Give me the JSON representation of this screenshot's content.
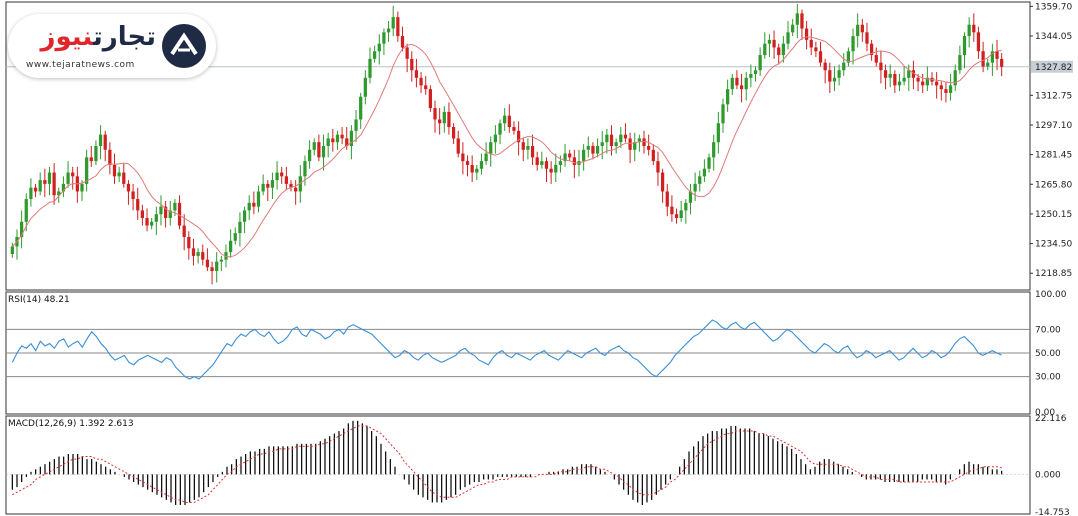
{
  "brand": {
    "name_main": "تجارت",
    "name_accent": "نیوز",
    "url": "www.tejaratnews.com",
    "colors": {
      "navy": "#1f2a44",
      "red": "#e0262b"
    },
    "mark_icon": "tejarat-logo-icon"
  },
  "colors": {
    "bull": "#2e9a2e",
    "bear": "#d02020",
    "ma": "#e07a7a",
    "rsi": "#3a8fd6",
    "macd_hist": "#000000",
    "macd_signal": "#e03030",
    "grid": "#888888",
    "panel_border": "#333333",
    "price_line": "#b8c0c8"
  },
  "chart_data": [
    {
      "type": "candlestick",
      "ylim": [
        1210,
        1362
      ],
      "yticks": [
        "1359.70",
        "1344.05",
        "1312.75",
        "1297.10",
        "1281.45",
        "1265.80",
        "1250.15",
        "1234.50",
        "1218.85"
      ],
      "current_price_label": "1327.82",
      "current_price": 1327.82,
      "moving_average": true,
      "close": [
        1233,
        1238,
        1246,
        1258,
        1264,
        1262,
        1268,
        1266,
        1272,
        1260,
        1262,
        1266,
        1272,
        1270,
        1262,
        1266,
        1280,
        1278,
        1286,
        1292,
        1284,
        1276,
        1270,
        1272,
        1266,
        1262,
        1258,
        1252,
        1248,
        1244,
        1246,
        1250,
        1254,
        1248,
        1252,
        1256,
        1244,
        1238,
        1232,
        1228,
        1230,
        1226,
        1222,
        1220,
        1225,
        1226,
        1230,
        1236,
        1240,
        1246,
        1252,
        1256,
        1254,
        1262,
        1266,
        1264,
        1268,
        1272,
        1270,
        1266,
        1264,
        1262,
        1270,
        1278,
        1284,
        1288,
        1280,
        1286,
        1290,
        1288,
        1292,
        1290,
        1286,
        1294,
        1300,
        1312,
        1322,
        1332,
        1336,
        1340,
        1346,
        1348,
        1354,
        1344,
        1338,
        1332,
        1326,
        1322,
        1318,
        1316,
        1306,
        1300,
        1298,
        1304,
        1296,
        1290,
        1282,
        1278,
        1276,
        1272,
        1274,
        1278,
        1282,
        1288,
        1292,
        1298,
        1302,
        1296,
        1294,
        1288,
        1284,
        1286,
        1280,
        1276,
        1278,
        1274,
        1272,
        1276,
        1278,
        1282,
        1280,
        1276,
        1278,
        1284,
        1286,
        1282,
        1286,
        1288,
        1292,
        1286,
        1288,
        1292,
        1290,
        1284,
        1288,
        1290,
        1286,
        1284,
        1278,
        1272,
        1262,
        1254,
        1250,
        1248,
        1252,
        1256,
        1262,
        1266,
        1270,
        1274,
        1280,
        1288,
        1298,
        1308,
        1316,
        1322,
        1318,
        1316,
        1322,
        1324,
        1326,
        1334,
        1340,
        1342,
        1338,
        1334,
        1340,
        1346,
        1350,
        1356,
        1348,
        1342,
        1338,
        1336,
        1330,
        1326,
        1320,
        1322,
        1326,
        1330,
        1336,
        1344,
        1350,
        1346,
        1340,
        1334,
        1330,
        1326,
        1322,
        1324,
        1318,
        1320,
        1322,
        1326,
        1322,
        1320,
        1318,
        1322,
        1320,
        1318,
        1316,
        1314,
        1318,
        1326,
        1334,
        1344,
        1350,
        1346,
        1336,
        1328,
        1330,
        1336,
        1332,
        1327.82
      ]
    },
    {
      "type": "line",
      "title": "RSI(14) 48.21",
      "name": "RSI(14)",
      "value_label": "48.21",
      "ylim": [
        0,
        100
      ],
      "levels": [
        70,
        50,
        30
      ],
      "yticks": [
        "100.00",
        "70.00",
        "50.00",
        "30.00",
        "0.00"
      ],
      "values": [
        42,
        50,
        56,
        54,
        58,
        52,
        60,
        56,
        58,
        54,
        60,
        62,
        55,
        58,
        60,
        55,
        62,
        68,
        64,
        58,
        54,
        48,
        44,
        46,
        48,
        42,
        40,
        44,
        46,
        48,
        46,
        44,
        42,
        46,
        44,
        38,
        34,
        30,
        28,
        30,
        28,
        32,
        36,
        40,
        46,
        52,
        58,
        56,
        62,
        66,
        64,
        68,
        70,
        66,
        64,
        68,
        62,
        58,
        60,
        64,
        70,
        72,
        66,
        64,
        70,
        68,
        66,
        62,
        64,
        68,
        70,
        66,
        72,
        74,
        72,
        70,
        68,
        66,
        62,
        58,
        54,
        50,
        46,
        48,
        52,
        50,
        46,
        44,
        48,
        50,
        46,
        44,
        42,
        44,
        46,
        48,
        52,
        54,
        50,
        48,
        44,
        42,
        40,
        46,
        50,
        52,
        48,
        46,
        50,
        48,
        46,
        44,
        48,
        50,
        52,
        48,
        46,
        44,
        48,
        52,
        50,
        48,
        46,
        50,
        52,
        54,
        50,
        48,
        52,
        54,
        56,
        52,
        50,
        46,
        44,
        40,
        36,
        32,
        30,
        34,
        38,
        42,
        48,
        52,
        56,
        60,
        64,
        66,
        70,
        74,
        78,
        76,
        72,
        70,
        74,
        76,
        72,
        70,
        74,
        76,
        72,
        68,
        64,
        60,
        62,
        66,
        70,
        68,
        64,
        60,
        56,
        52,
        50,
        54,
        58,
        56,
        52,
        50,
        54,
        56,
        50,
        46,
        48,
        52,
        50,
        46,
        48,
        50,
        52,
        48,
        44,
        46,
        50,
        54,
        50,
        46,
        48,
        52,
        50,
        46,
        48,
        52,
        58,
        62,
        64,
        60,
        56,
        50,
        48,
        50,
        52,
        50,
        48.21
      ]
    },
    {
      "type": "bar",
      "title": "MACD(12,26,9) 1.392 2.613",
      "name": "MACD(12,26,9)",
      "value_label": "1.392 2.613",
      "ylim": [
        -14.753,
        22.116
      ],
      "yticks": [
        "22.116",
        "0.000",
        "-14.753"
      ],
      "histogram": [
        -6,
        -5,
        -3,
        -1,
        1,
        2,
        3,
        4,
        5,
        6,
        7,
        7,
        8,
        8,
        8,
        7,
        6,
        6,
        5,
        4,
        3,
        2,
        1,
        0,
        -1,
        -2,
        -3,
        -4,
        -5,
        -6,
        -7,
        -8,
        -9,
        -10,
        -11,
        -12,
        -12,
        -12,
        -11,
        -10,
        -9,
        -7,
        -5,
        -3,
        -1,
        1,
        3,
        4,
        6,
        7,
        8,
        9,
        9,
        10,
        10,
        11,
        11,
        11,
        11,
        11,
        11,
        12,
        12,
        12,
        12,
        12,
        13,
        14,
        15,
        16,
        17,
        18,
        20,
        21,
        21,
        20,
        19,
        17,
        15,
        12,
        9,
        6,
        3,
        0,
        -2,
        -4,
        -6,
        -8,
        -9,
        -10,
        -11,
        -11,
        -11,
        -10,
        -9,
        -8,
        -6,
        -5,
        -4,
        -3,
        -3,
        -2,
        -2,
        -2,
        -1,
        -1,
        -1,
        -1,
        -1,
        -1,
        -1,
        -1,
        0,
        0,
        0,
        1,
        1,
        1,
        2,
        2,
        3,
        3,
        4,
        4,
        4,
        3,
        2,
        1,
        0,
        -2,
        -4,
        -6,
        -8,
        -10,
        -11,
        -12,
        -11,
        -10,
        -8,
        -6,
        -4,
        -2,
        0,
        3,
        6,
        9,
        11,
        13,
        15,
        16,
        17,
        17,
        18,
        18,
        19,
        19,
        18,
        18,
        18,
        17,
        16,
        16,
        15,
        14,
        13,
        12,
        11,
        10,
        8,
        6,
        4,
        2,
        3,
        5,
        6,
        6,
        5,
        4,
        3,
        2,
        1,
        0,
        -1,
        -2,
        -2,
        -2,
        -2,
        -3,
        -3,
        -3,
        -3,
        -3,
        -3,
        -3,
        -3,
        -2,
        -2,
        -2,
        -3,
        -3,
        -4,
        -2,
        0,
        2,
        4,
        5,
        4,
        4,
        3,
        3,
        2,
        2,
        1.392
      ],
      "signal": [
        -8,
        -7,
        -6,
        -5,
        -4,
        -2,
        -1,
        0,
        1,
        2,
        3,
        4,
        5,
        6,
        6,
        7,
        7,
        7,
        6,
        6,
        5,
        4,
        3,
        2,
        1,
        0,
        -1,
        -2,
        -3,
        -4,
        -5,
        -6,
        -7,
        -8,
        -9,
        -10,
        -10,
        -11,
        -11,
        -11,
        -10,
        -9,
        -8,
        -6,
        -4,
        -2,
        0,
        1,
        3,
        4,
        5,
        6,
        7,
        8,
        8,
        9,
        9,
        10,
        10,
        10,
        10,
        11,
        11,
        11,
        11,
        11,
        12,
        12,
        13,
        14,
        15,
        16,
        17,
        18,
        19,
        19,
        19,
        18,
        17,
        16,
        14,
        12,
        10,
        8,
        5,
        3,
        1,
        -1,
        -3,
        -5,
        -7,
        -8,
        -9,
        -9,
        -9,
        -9,
        -8,
        -7,
        -6,
        -5,
        -4,
        -4,
        -3,
        -3,
        -2,
        -2,
        -2,
        -1,
        -1,
        -1,
        -1,
        -1,
        -1,
        0,
        0,
        0,
        0,
        1,
        1,
        1,
        2,
        2,
        2,
        3,
        3,
        3,
        2,
        2,
        1,
        0,
        -1,
        -3,
        -4,
        -6,
        -7,
        -8,
        -8,
        -8,
        -7,
        -6,
        -5,
        -3,
        -2,
        0,
        2,
        4,
        6,
        8,
        10,
        12,
        13,
        14,
        15,
        16,
        16,
        17,
        17,
        17,
        17,
        17,
        16,
        16,
        15,
        15,
        14,
        13,
        12,
        11,
        10,
        9,
        7,
        5,
        4,
        4,
        4,
        4,
        4,
        4,
        3,
        3,
        2,
        1,
        0,
        -1,
        -1,
        -1,
        -2,
        -2,
        -2,
        -2,
        -3,
        -3,
        -3,
        -3,
        -3,
        -3,
        -3,
        -3,
        -3,
        -3,
        -3,
        -3,
        -2,
        -1,
        0,
        1,
        2,
        2,
        3,
        3,
        3,
        3,
        2.613
      ]
    }
  ]
}
